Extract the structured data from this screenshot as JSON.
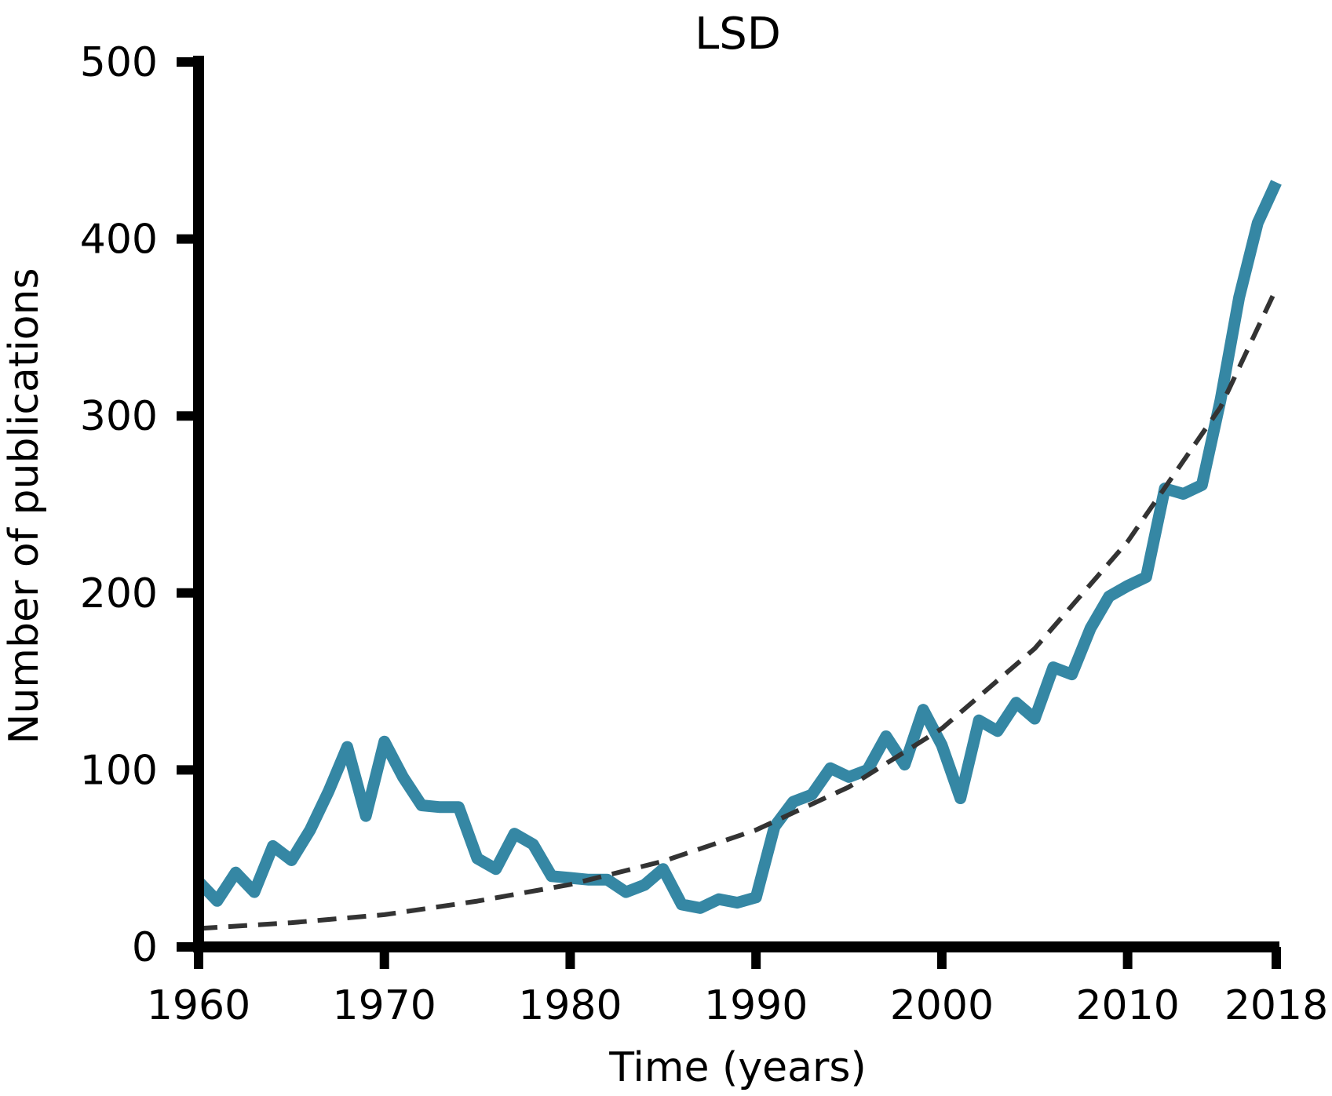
{
  "chart_data": {
    "type": "line",
    "title": "LSD",
    "xlabel": "Time (years)",
    "ylabel": "Number of publications",
    "xlim": [
      1960,
      2018
    ],
    "ylim": [
      0,
      500
    ],
    "xticks": [
      1960,
      1970,
      1980,
      1990,
      2000,
      2010,
      2018
    ],
    "yticks": [
      0,
      100,
      200,
      300,
      400,
      500
    ],
    "grid": false,
    "series": [
      {
        "style": "solid",
        "color": "#3587a4",
        "x": [
          1960,
          1961,
          1962,
          1963,
          1964,
          1965,
          1966,
          1967,
          1968,
          1969,
          1970,
          1971,
          1972,
          1973,
          1974,
          1975,
          1976,
          1977,
          1978,
          1979,
          1980,
          1981,
          1982,
          1983,
          1984,
          1985,
          1986,
          1987,
          1988,
          1989,
          1990,
          1991,
          1992,
          1993,
          1994,
          1995,
          1996,
          1997,
          1998,
          1999,
          2000,
          2001,
          2002,
          2003,
          2004,
          2005,
          2006,
          2007,
          2008,
          2009,
          2010,
          2011,
          2012,
          2013,
          2014,
          2015,
          2016,
          2017,
          2018
        ],
        "y": [
          37,
          26,
          42,
          31,
          57,
          49,
          66,
          88,
          113,
          74,
          116,
          96,
          80,
          79,
          79,
          50,
          44,
          64,
          58,
          40,
          39,
          38,
          38,
          31,
          35,
          44,
          24,
          22,
          27,
          25,
          28,
          68,
          82,
          86,
          101,
          96,
          100,
          119,
          103,
          134,
          114,
          84,
          128,
          122,
          138,
          129,
          158,
          154,
          180,
          198,
          204,
          209,
          259,
          256,
          261,
          309,
          367,
          409,
          432
        ]
      },
      {
        "style": "dashed",
        "color": "#333333",
        "fit": "exponential",
        "x": [
          1960,
          1965,
          1970,
          1975,
          1980,
          1985,
          1990,
          1995,
          2000,
          2005,
          2010,
          2015,
          2018
        ],
        "y": [
          10.4,
          13.7,
          18.2,
          25.9,
          35.3,
          48.4,
          66.1,
          90.4,
          123.4,
          168.6,
          229.0,
          305.0,
          372.0
        ]
      }
    ]
  }
}
